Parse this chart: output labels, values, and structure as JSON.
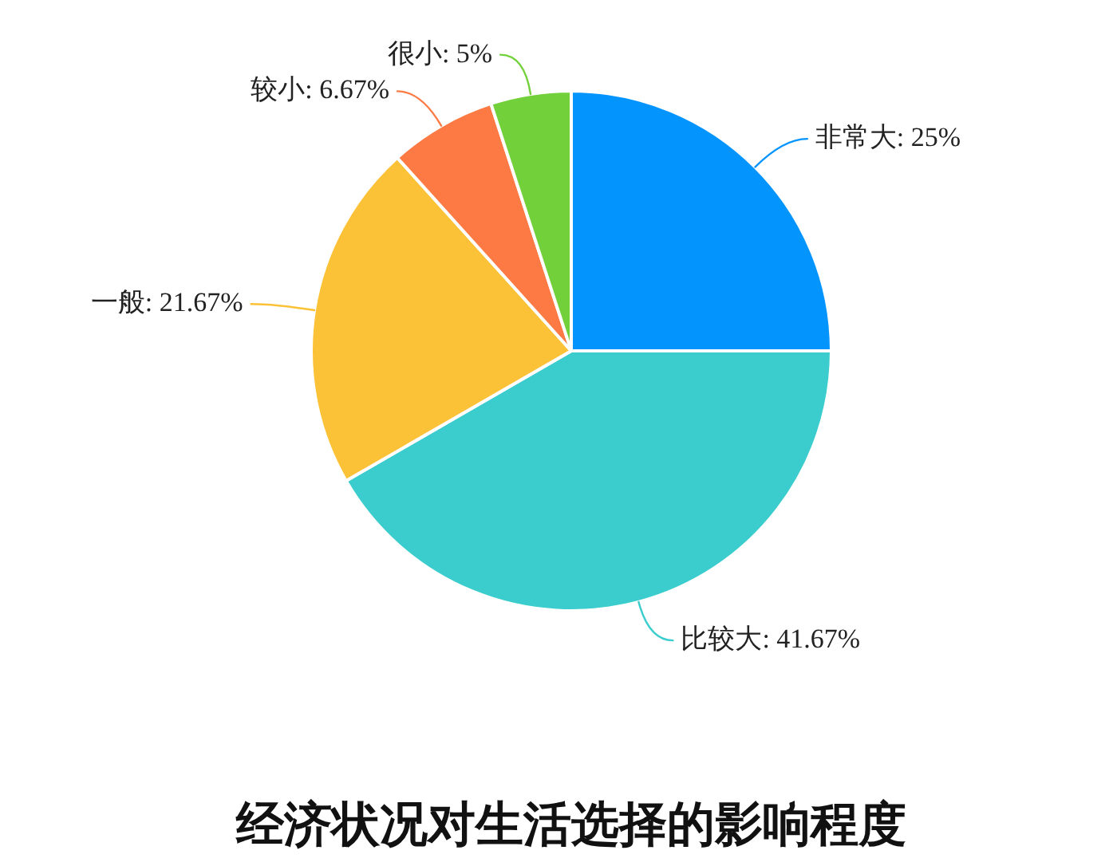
{
  "chart_data": {
    "type": "pie",
    "title": "经济状况对生活选择的影响程度",
    "categories": [
      "非常大",
      "比较大",
      "一般",
      "较小",
      "很小"
    ],
    "values": [
      25,
      41.67,
      21.67,
      6.67,
      5
    ],
    "value_labels": [
      "25%",
      "41.67%",
      "21.67%",
      "6.67%",
      "5%"
    ],
    "colors": [
      "#0394fe",
      "#3bcdcd",
      "#fcc237",
      "#fe7a44",
      "#72d13b"
    ]
  }
}
